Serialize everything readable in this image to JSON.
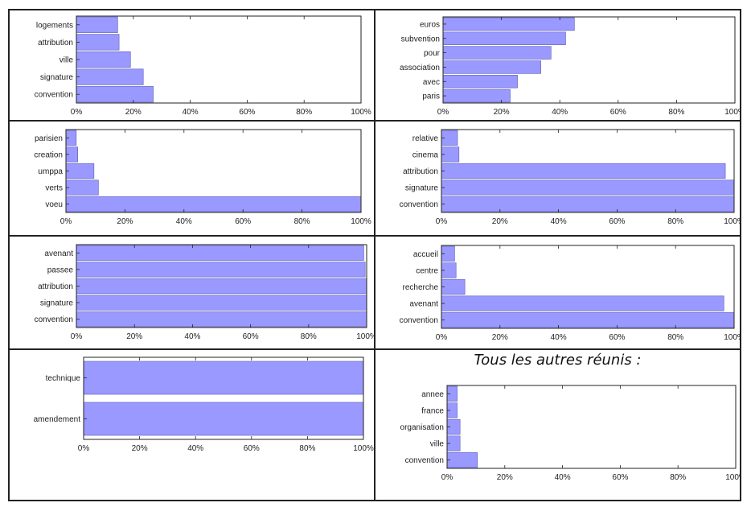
{
  "bar_color": "#9999ff",
  "bar_edge": "#5a5ab8",
  "chart_data": [
    {
      "type": "bar",
      "orientation": "horizontal",
      "categories": [
        "convention",
        "signature",
        "ville",
        "attribution",
        "logements"
      ],
      "values": [
        27,
        23.5,
        19,
        15,
        14.5
      ],
      "xlim": [
        0,
        100
      ],
      "xticks": [
        "0%",
        "20%",
        "40%",
        "60%",
        "80%",
        "100%"
      ]
    },
    {
      "type": "bar",
      "orientation": "horizontal",
      "categories": [
        "paris",
        "avec",
        "association",
        "pour",
        "subvention",
        "euros"
      ],
      "values": [
        23,
        25.5,
        33.5,
        37,
        42,
        45
      ],
      "xlim": [
        0,
        100
      ],
      "xticks": [
        "0%",
        "20%",
        "40%",
        "60%",
        "80%",
        "100%"
      ]
    },
    {
      "type": "bar",
      "orientation": "horizontal",
      "categories": [
        "voeu",
        "verts",
        "umppa",
        "creation",
        "parisien"
      ],
      "values": [
        100,
        11,
        9.5,
        4,
        3.5
      ],
      "xlim": [
        0,
        100
      ],
      "xticks": [
        "0%",
        "20%",
        "40%",
        "60%",
        "80%",
        "100%"
      ]
    },
    {
      "type": "bar",
      "orientation": "horizontal",
      "categories": [
        "convention",
        "signature",
        "attribution",
        "cinema",
        "relative"
      ],
      "values": [
        100,
        100,
        97,
        6,
        5.5
      ],
      "xlim": [
        0,
        100
      ],
      "xticks": [
        "0%",
        "20%",
        "40%",
        "60%",
        "80%",
        "100%"
      ]
    },
    {
      "type": "bar",
      "orientation": "horizontal",
      "categories": [
        "convention",
        "signature",
        "attribution",
        "passee",
        "avenant"
      ],
      "values": [
        100,
        100,
        100,
        99.5,
        99
      ],
      "xlim": [
        0,
        100
      ],
      "xticks": [
        "0%",
        "20%",
        "40%",
        "60%",
        "80%",
        "100%"
      ]
    },
    {
      "type": "bar",
      "orientation": "horizontal",
      "categories": [
        "convention",
        "avenant",
        "recherche",
        "centre",
        "accueil"
      ],
      "values": [
        100,
        96.5,
        8,
        5,
        4.5
      ],
      "xlim": [
        0,
        100
      ],
      "xticks": [
        "0%",
        "20%",
        "40%",
        "60%",
        "80%",
        "100%"
      ]
    },
    {
      "type": "bar",
      "orientation": "horizontal",
      "categories": [
        "amendement",
        "technique"
      ],
      "values": [
        100,
        100
      ],
      "xlim": [
        0,
        100
      ],
      "xticks": [
        "0%",
        "20%",
        "40%",
        "60%",
        "80%",
        "100%"
      ]
    },
    {
      "type": "bar",
      "orientation": "horizontal",
      "title": "Tous les autres réunis :",
      "categories": [
        "convention",
        "ville",
        "organisation",
        "france",
        "annee"
      ],
      "values": [
        10.5,
        4.5,
        4.5,
        3.5,
        3.5
      ],
      "xlim": [
        0,
        100
      ],
      "xticks": [
        "0%",
        "20%",
        "40%",
        "60%",
        "80%",
        "100%"
      ]
    }
  ]
}
